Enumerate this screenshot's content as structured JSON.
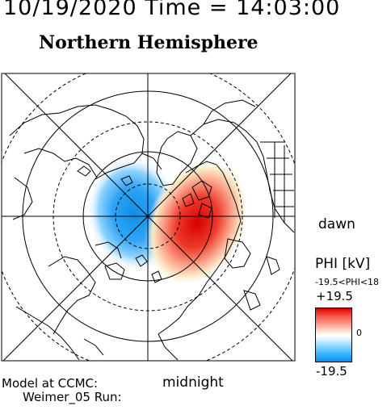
{
  "header": {
    "timestamp": "10/19/2020 Time = 14:03:00",
    "title": "Northern Hemisphere"
  },
  "labels": {
    "dawn": "dawn",
    "midnight": "midnight",
    "model_line1": "Model at CCMC:",
    "model_line2": "Weimer_05 Run:"
  },
  "colorbar": {
    "title": "PHI [kV]",
    "range_text": "-19.5<PHI<18",
    "max_label": "+19.5",
    "zero_label": "0",
    "min_label": "-19.5",
    "colors": {
      "positive": "#d60000",
      "neutral": "#ffffff",
      "negative": "#0e8fe8"
    }
  },
  "map": {
    "projection": "polar stereographic, north pole centered",
    "potential_cells": [
      {
        "sign": "negative",
        "color": "#1e9cf0",
        "side": "dusk/pre-midnight",
        "peak_kv": -19.5
      },
      {
        "sign": "positive",
        "color": "#d8231a",
        "side": "dawn/post-midnight",
        "peak_kv": 18
      }
    ]
  }
}
